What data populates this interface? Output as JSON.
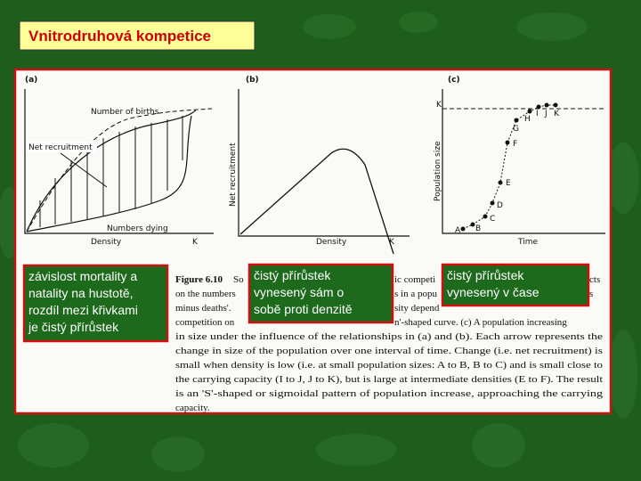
{
  "title": "Vnitrodruhová kompetice",
  "figure": {
    "a": {
      "label": "(a)",
      "births": "Number of births",
      "net": "Net recruitment",
      "dying": "Numbers dying",
      "xlabel": "Density",
      "k": "K"
    },
    "b": {
      "label": "(b)",
      "ylabel": "Net recruitment",
      "xlabel": "Density",
      "k": "K"
    },
    "c": {
      "label": "(c)",
      "ylabel": "Population size",
      "xlabel": "Time",
      "k": "K",
      "points": [
        "A",
        "B",
        "C",
        "D",
        "E",
        "F",
        "G",
        "H",
        "I",
        "J",
        "K"
      ]
    }
  },
  "caption": {
    "lines": [
      [
        "Figure 6.10",
        "So",
        "ic competi",
        "cts"
      ],
      [
        "on the numbers",
        "s in a popu",
        "s"
      ],
      [
        "minus deaths'.",
        "sity depend"
      ],
      [
        "competition on",
        "n'-shaped curve. (c) A population increasing"
      ],
      [
        "in size under the influence of the relationships in (a) and (b). Each arrow represents the"
      ],
      [
        "change in size of the population over one interval of time. Change (i.e. net recruitment) is"
      ],
      [
        "small when density is low (i.e. at small population sizes: A to B, B to C) and is small close to"
      ],
      [
        "the carrying capacity (I to J, J to K), but is large at intermediate densities (E to F). The result"
      ],
      [
        "is an 'S'-shaped or sigmoidal pattern of population increase, approaching the carrying"
      ],
      [
        "capacity."
      ]
    ]
  },
  "callouts": [
    [
      "závislost mortality a",
      "natality na hustotě,",
      "rozdíl mezi křivkami",
      "je čistý přírůstek"
    ],
    [
      "čistý přírůstek",
      "vynesený sám o",
      "sobě proti denzitě"
    ],
    [
      "čistý přírůstek",
      "vynesený v čase"
    ]
  ]
}
